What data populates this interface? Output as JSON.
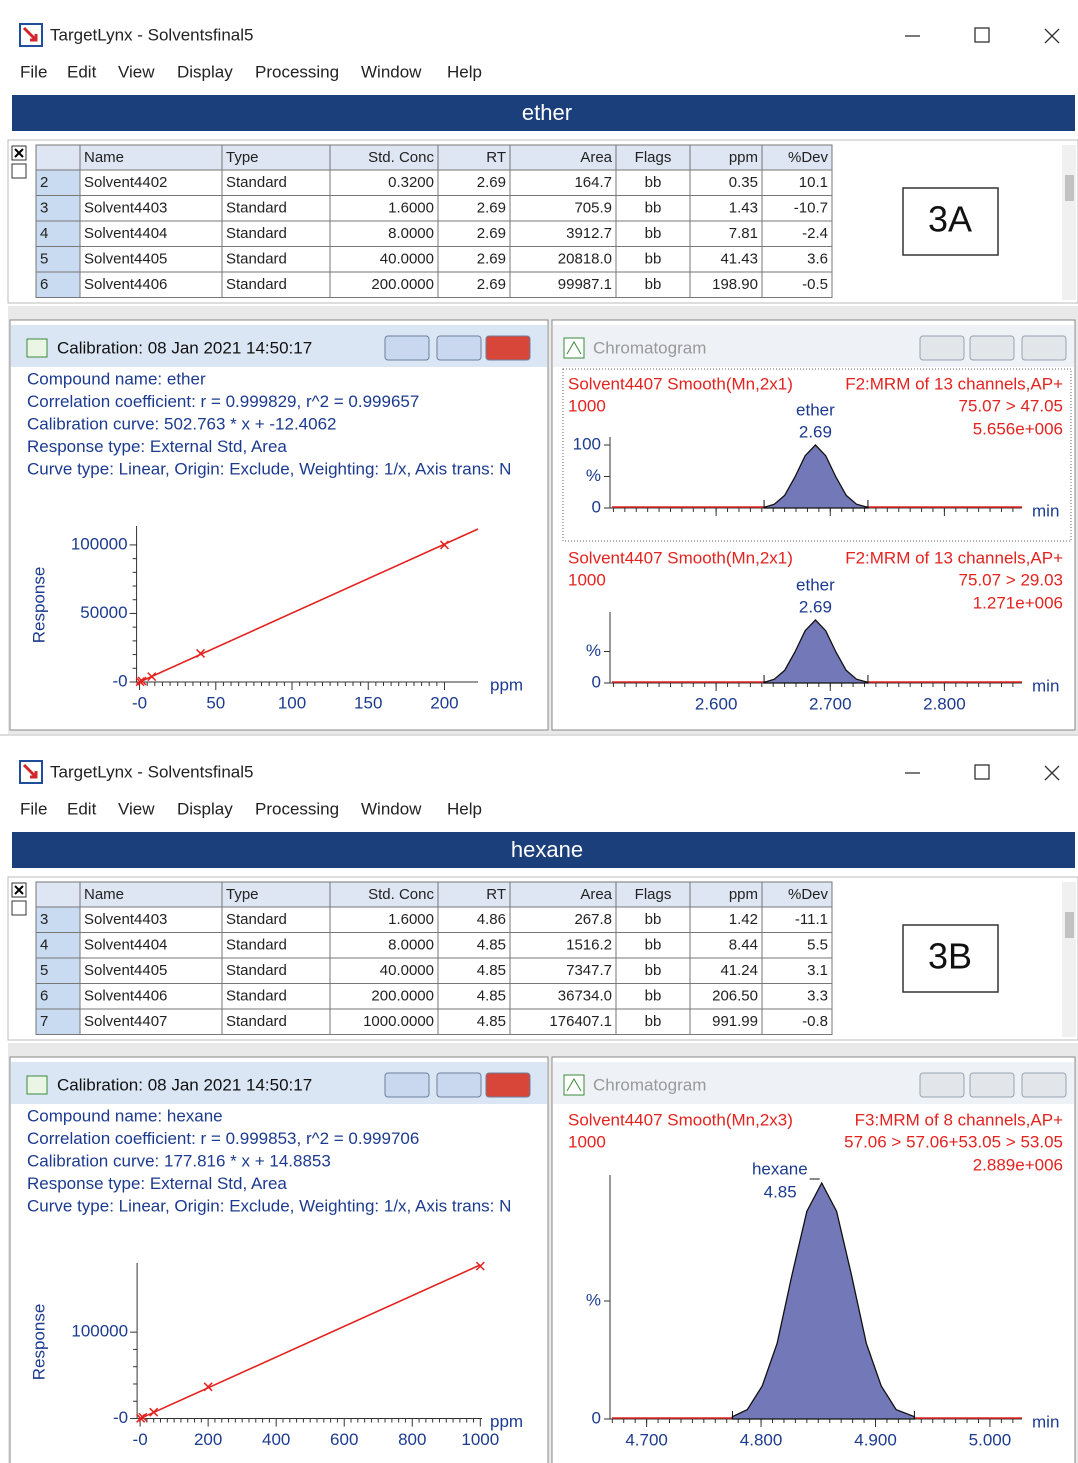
{
  "panels": [
    {
      "window_title": "TargetLynx - Solventsfinal5",
      "menu": [
        "File",
        "Edit",
        "View",
        "Display",
        "Processing",
        "Window",
        "Help"
      ],
      "compound": "ether",
      "table": {
        "headers": [
          "Name",
          "Type",
          "Std. Conc",
          "RT",
          "Area",
          "Flags",
          "ppm",
          "%Dev"
        ],
        "rows": [
          [
            "2",
            "Solvent4402",
            "Standard",
            "0.3200",
            "2.69",
            "164.7",
            "bb",
            "0.35",
            "10.1"
          ],
          [
            "3",
            "Solvent4403",
            "Standard",
            "1.6000",
            "2.69",
            "705.9",
            "bb",
            "1.43",
            "-10.7"
          ],
          [
            "4",
            "Solvent4404",
            "Standard",
            "8.0000",
            "2.69",
            "3912.7",
            "bb",
            "7.81",
            "-2.4"
          ],
          [
            "5",
            "Solvent4405",
            "Standard",
            "40.0000",
            "2.69",
            "20818.0",
            "bb",
            "41.43",
            "3.6"
          ],
          [
            "6",
            "Solvent4406",
            "Standard",
            "200.0000",
            "2.69",
            "99987.1",
            "bb",
            "198.90",
            "-0.5"
          ]
        ]
      },
      "label": "3A",
      "calibration": {
        "title": "Calibration: 08 Jan 2021 14:50:17",
        "info": [
          "Compound name: ether",
          "Correlation coefficient: r = 0.999829, r^2 = 0.999657",
          "Calibration curve: 502.763 * x + -12.4062",
          "Response type: External Std, Area",
          "Curve type: Linear, Origin: Exclude, Weighting: 1/x, Axis trans: N"
        ],
        "plot": {
          "y_label": "Response",
          "x_label": "ppm",
          "xlim": [
            -3,
            222
          ],
          "ylim": [
            -2200,
            113800
          ],
          "xticks": [
            {
              "value": 0,
              "label": "-0"
            },
            50,
            100,
            150,
            200
          ],
          "yticks": [
            {
              "value": 0,
              "label": "-0"
            },
            50000,
            100000
          ],
          "points": {
            "x": [
              0.32,
              1.6,
              8,
              40,
              200
            ],
            "y": [
              164.7,
              705.9,
              3912.7,
              20818,
              99987.1
            ]
          },
          "curve": {
            "x": [
              -2,
              222
            ],
            "y": [
              -1018,
              111601
            ]
          }
        }
      },
      "chromatogram": {
        "title": "Chromatogram",
        "xlim": [
          2.507,
          2.868
        ],
        "xticks": [
          {
            "value": 2.6,
            "label": "2.600"
          },
          {
            "value": 2.7,
            "label": "2.700"
          },
          {
            "value": 2.8,
            "label": "2.800"
          }
        ],
        "traces": [
          {
            "sample": "Solvent4407 Smooth(Mn,2x1)",
            "function": "F2:MRM of 13 channels,AP+",
            "scale": "1000",
            "transition": "75.07 > 47.05",
            "intensity": "5.656e+006",
            "peak_name": "ether",
            "peak_rt": "2.69",
            "x_unit": "min",
            "ylim": [
              0,
              100
            ],
            "yticks": [
              {
                "value": 0,
                "label": "0"
              },
              {
                "value": 50,
                "label": "%"
              },
              100
            ],
            "peak": {
              "x": [
                2.642,
                2.651,
                2.66,
                2.669,
                2.678,
                2.687,
                2.696,
                2.705,
                2.714,
                2.723,
                2.733
              ],
              "y": [
                1,
                6,
                20,
                49,
                83,
                100,
                83,
                49,
                20,
                6,
                1
              ]
            }
          },
          {
            "sample": "Solvent4407 Smooth(Mn,2x1)",
            "function": "F2:MRM of 13 channels,AP+",
            "scale": "1000",
            "transition": "75.07 > 29.03",
            "intensity": "1.271e+006",
            "peak_name": "ether",
            "peak_rt": "2.69",
            "x_unit": "min",
            "ylim": [
              0,
              100
            ],
            "yticks": [
              {
                "value": 0,
                "label": "0"
              },
              {
                "value": 50,
                "label": "%"
              }
            ],
            "peak": {
              "x": [
                2.642,
                2.651,
                2.66,
                2.669,
                2.678,
                2.687,
                2.696,
                2.705,
                2.714,
                2.723,
                2.733
              ],
              "y": [
                1,
                6,
                20,
                49,
                83,
                100,
                83,
                49,
                20,
                6,
                1
              ]
            }
          }
        ]
      }
    },
    {
      "window_title": "TargetLynx - Solventsfinal5",
      "menu": [
        "File",
        "Edit",
        "View",
        "Display",
        "Processing",
        "Window",
        "Help"
      ],
      "compound": "hexane",
      "table": {
        "headers": [
          "Name",
          "Type",
          "Std. Conc",
          "RT",
          "Area",
          "Flags",
          "ppm",
          "%Dev"
        ],
        "rows": [
          [
            "3",
            "Solvent4403",
            "Standard",
            "1.6000",
            "4.86",
            "267.8",
            "bb",
            "1.42",
            "-11.1"
          ],
          [
            "4",
            "Solvent4404",
            "Standard",
            "8.0000",
            "4.85",
            "1516.2",
            "bb",
            "8.44",
            "5.5"
          ],
          [
            "5",
            "Solvent4405",
            "Standard",
            "40.0000",
            "4.85",
            "7347.7",
            "bb",
            "41.24",
            "3.1"
          ],
          [
            "6",
            "Solvent4406",
            "Standard",
            "200.0000",
            "4.85",
            "36734.0",
            "bb",
            "206.50",
            "3.3"
          ],
          [
            "7",
            "Solvent4407",
            "Standard",
            "1000.0000",
            "4.85",
            "176407.1",
            "bb",
            "991.99",
            "-0.8"
          ]
        ]
      },
      "label": "3B",
      "calibration": {
        "title": "Calibration: 08 Jan 2021 14:50:17",
        "info": [
          "Compound name: hexane",
          "Correlation coefficient: r = 0.999853, r^2 = 0.999706",
          "Calibration curve: 177.816 * x + 14.8853",
          "Response type: External Std, Area",
          "Curve type: Linear, Origin: Exclude, Weighting: 1/x, Axis trans: N"
        ],
        "plot": {
          "y_label": "Response",
          "x_label": "ppm",
          "xlim": [
            -15,
            1005
          ],
          "ylim": [
            -4000,
            180000
          ],
          "xticks": [
            {
              "value": 0,
              "label": "-0"
            },
            200,
            400,
            600,
            800,
            1000
          ],
          "yticks": [
            {
              "value": 0,
              "label": "-0"
            },
            100000
          ],
          "points": {
            "x": [
              1.6,
              8,
              40,
              200,
              1000
            ],
            "y": [
              267.8,
              1516.2,
              7347.7,
              36734,
              176407.1
            ]
          },
          "curve": {
            "x": [
              -5,
              1000
            ],
            "y": [
              -874,
              177831
            ]
          }
        }
      },
      "chromatogram": {
        "title": "Chromatogram",
        "xlim": [
          4.668,
          5.028
        ],
        "xticks": [
          {
            "value": 4.7,
            "label": "4.700"
          },
          {
            "value": 4.8,
            "label": "4.800"
          },
          {
            "value": 4.9,
            "label": "4.900"
          },
          {
            "value": 5,
            "label": "5.000"
          }
        ],
        "traces": [
          {
            "sample": "Solvent4407 Smooth(Mn,2x3)",
            "function": "F3:MRM of 8 channels,AP+",
            "scale": "1000",
            "transition": "57.06 > 57.06+53.05 > 53.05",
            "intensity": "2.889e+006",
            "peak_name": "hexane",
            "peak_rt": "4.85",
            "x_unit": "min",
            "ylim": [
              0,
              100
            ],
            "yticks": [
              {
                "value": 0,
                "label": "0"
              },
              {
                "value": 50,
                "label": "%"
              }
            ],
            "peak": {
              "x": [
                4.775,
                4.788,
                4.801,
                4.814,
                4.827,
                4.84,
                4.853,
                4.866,
                4.879,
                4.892,
                4.905,
                4.918,
                4.934
              ],
              "y": [
                1,
                4,
                14,
                32,
                61,
                88,
                100,
                88,
                61,
                32,
                14,
                4,
                1
              ]
            }
          }
        ]
      }
    }
  ]
}
